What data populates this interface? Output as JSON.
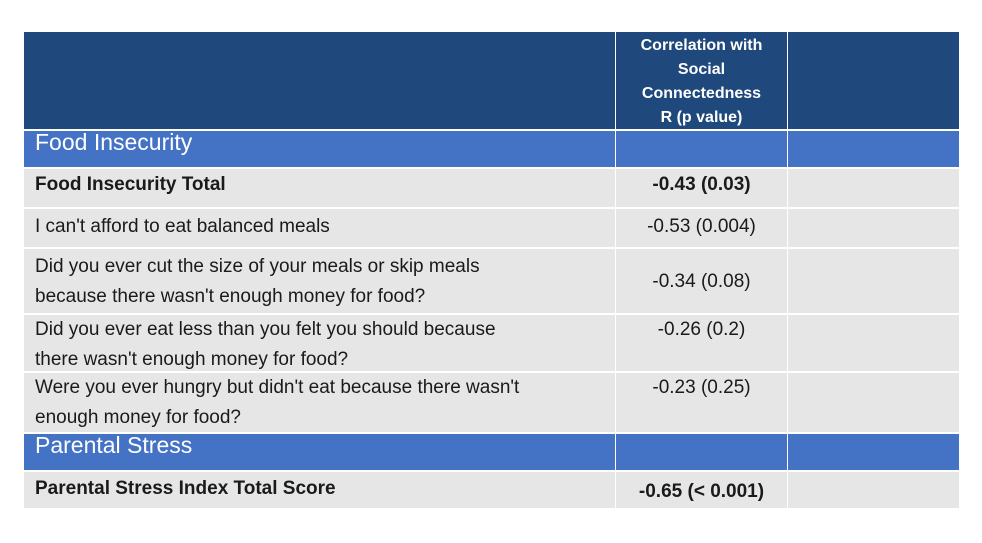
{
  "table": {
    "header": {
      "col2_lines": [
        "Correlation with",
        "Social",
        "Connectedness",
        "R (p value)"
      ]
    },
    "sections": [
      {
        "title": "Food Insecurity",
        "rows": [
          {
            "item": "Food Insecurity Total",
            "value": "-0.43 (0.03)",
            "bold": true
          },
          {
            "item": "I can't afford to eat balanced meals",
            "value": "-0.53 (0.004)"
          },
          {
            "item_lines": [
              "Did you ever cut the size of your meals or skip meals",
              "because there wasn't enough money for food?"
            ],
            "value": "-0.34 (0.08)"
          },
          {
            "item_lines": [
              "Did you ever eat less than you felt you should because",
              "there wasn't enough money for food?"
            ],
            "value": "-0.26 (0.2)"
          },
          {
            "item_lines": [
              "Were you ever hungry but didn't eat because there wasn't",
              "enough money for food?"
            ],
            "value": "-0.23 (0.25)"
          }
        ]
      },
      {
        "title": "Parental Stress",
        "rows": [
          {
            "item": "Parental Stress Index Total Score",
            "value": "-0.65 (< 0.001)",
            "bold": true
          }
        ]
      }
    ]
  }
}
